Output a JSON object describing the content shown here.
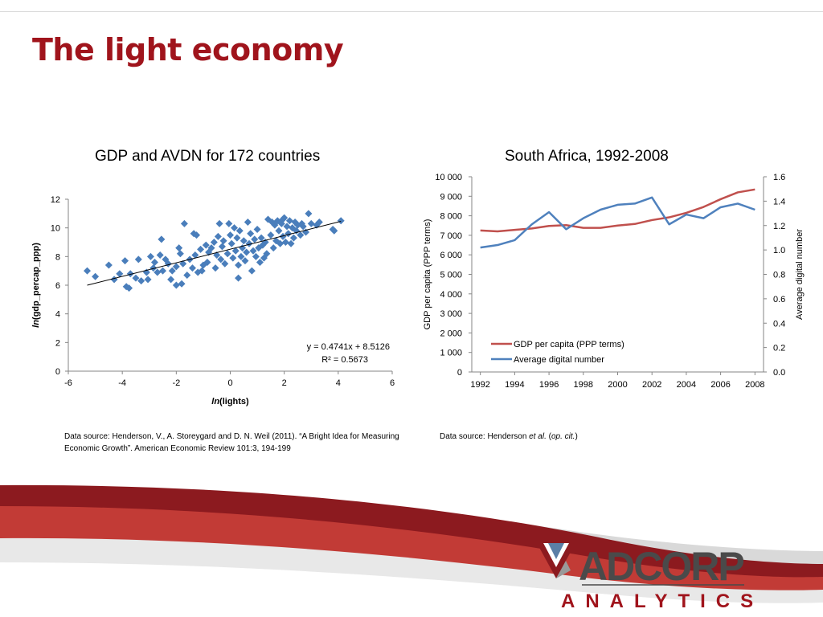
{
  "slide": {
    "title": "The light economy",
    "accent_color": "#a0141c"
  },
  "chart_data": [
    {
      "type": "scatter",
      "title": "GDP and AVDN for 172 countries",
      "xlabel_prefix": "ln",
      "xlabel_suffix": "(lights)",
      "ylabel_prefix": "ln",
      "ylabel_suffix": "(gdp_percap_ppp)",
      "xlim": [
        -6,
        6
      ],
      "ylim": [
        0,
        12
      ],
      "xticks": [
        "-6",
        "-4",
        "-2",
        "0",
        "2",
        "4",
        "6"
      ],
      "yticks": [
        "0",
        "2",
        "4",
        "6",
        "8",
        "10",
        "12"
      ],
      "grid": false,
      "marker": "diamond",
      "marker_color": "#4a7ebb",
      "trendline": {
        "slope": 0.4741,
        "intercept": 8.5126,
        "x_range": [
          -5.3,
          4.1
        ],
        "color": "#000000"
      },
      "equation": "y = 0.4741x + 8.5126",
      "r_squared": "R² = 0.5673",
      "points": [
        [
          -5.3,
          7.0
        ],
        [
          -5.0,
          6.6
        ],
        [
          -4.5,
          7.4
        ],
        [
          -4.3,
          6.4
        ],
        [
          -4.1,
          6.8
        ],
        [
          -3.9,
          7.7
        ],
        [
          -3.85,
          5.9
        ],
        [
          -3.75,
          5.8
        ],
        [
          -3.7,
          6.8
        ],
        [
          -3.5,
          6.5
        ],
        [
          -3.4,
          7.8
        ],
        [
          -3.3,
          6.3
        ],
        [
          -3.1,
          6.9
        ],
        [
          -3.05,
          6.4
        ],
        [
          -2.95,
          8.0
        ],
        [
          -2.85,
          7.2
        ],
        [
          -2.8,
          7.6
        ],
        [
          -2.7,
          6.9
        ],
        [
          -2.6,
          8.1
        ],
        [
          -2.55,
          9.2
        ],
        [
          -2.5,
          7.0
        ],
        [
          -2.4,
          7.8
        ],
        [
          -2.3,
          7.5
        ],
        [
          -2.2,
          6.4
        ],
        [
          -2.15,
          7.0
        ],
        [
          -2.0,
          7.3
        ],
        [
          -2.0,
          6.0
        ],
        [
          -1.9,
          8.6
        ],
        [
          -1.85,
          8.2
        ],
        [
          -1.8,
          6.1
        ],
        [
          -1.75,
          7.5
        ],
        [
          -1.7,
          10.3
        ],
        [
          -1.6,
          6.7
        ],
        [
          -1.5,
          7.8
        ],
        [
          -1.4,
          7.2
        ],
        [
          -1.35,
          9.6
        ],
        [
          -1.3,
          8.1
        ],
        [
          -1.25,
          9.5
        ],
        [
          -1.2,
          6.9
        ],
        [
          -1.1,
          8.5
        ],
        [
          -1.05,
          7.0
        ],
        [
          -1.0,
          7.4
        ],
        [
          -0.9,
          8.8
        ],
        [
          -0.85,
          7.6
        ],
        [
          -0.8,
          8.3
        ],
        [
          -0.7,
          8.6
        ],
        [
          -0.6,
          9.0
        ],
        [
          -0.55,
          7.2
        ],
        [
          -0.5,
          8.1
        ],
        [
          -0.45,
          9.4
        ],
        [
          -0.4,
          10.3
        ],
        [
          -0.35,
          7.8
        ],
        [
          -0.3,
          8.7
        ],
        [
          -0.25,
          9.1
        ],
        [
          -0.2,
          7.5
        ],
        [
          -0.1,
          8.2
        ],
        [
          -0.05,
          10.3
        ],
        [
          0.0,
          9.5
        ],
        [
          0.05,
          8.9
        ],
        [
          0.1,
          7.9
        ],
        [
          0.15,
          10.0
        ],
        [
          0.2,
          8.4
        ],
        [
          0.25,
          9.3
        ],
        [
          0.3,
          7.4
        ],
        [
          0.3,
          6.5
        ],
        [
          0.35,
          9.8
        ],
        [
          0.4,
          8.0
        ],
        [
          0.45,
          8.6
        ],
        [
          0.5,
          9.1
        ],
        [
          0.55,
          7.7
        ],
        [
          0.6,
          8.3
        ],
        [
          0.65,
          10.4
        ],
        [
          0.7,
          8.9
        ],
        [
          0.75,
          9.6
        ],
        [
          0.8,
          7.0
        ],
        [
          0.85,
          8.4
        ],
        [
          0.9,
          9.2
        ],
        [
          0.95,
          8.0
        ],
        [
          1.0,
          9.9
        ],
        [
          1.05,
          8.6
        ],
        [
          1.1,
          7.6
        ],
        [
          1.15,
          9.3
        ],
        [
          1.2,
          8.8
        ],
        [
          1.25,
          7.9
        ],
        [
          1.3,
          9.0
        ],
        [
          1.35,
          8.2
        ],
        [
          1.4,
          10.6
        ],
        [
          1.5,
          9.5
        ],
        [
          1.6,
          8.6
        ],
        [
          1.65,
          10.2
        ],
        [
          1.7,
          9.1
        ],
        [
          1.75,
          10.5
        ],
        [
          1.8,
          9.8
        ],
        [
          1.85,
          8.9
        ],
        [
          1.9,
          10.3
        ],
        [
          1.95,
          9.4
        ],
        [
          2.0,
          10.7
        ],
        [
          2.05,
          9.0
        ],
        [
          2.1,
          10.1
        ],
        [
          2.15,
          9.6
        ],
        [
          2.2,
          10.5
        ],
        [
          2.25,
          8.9
        ],
        [
          2.3,
          10.0
        ],
        [
          2.35,
          9.3
        ],
        [
          2.4,
          10.4
        ],
        [
          2.45,
          9.8
        ],
        [
          2.5,
          10.2
        ],
        [
          2.6,
          9.5
        ],
        [
          2.7,
          10.1
        ],
        [
          2.8,
          9.7
        ],
        [
          2.9,
          11.0
        ],
        [
          3.0,
          10.3
        ],
        [
          3.2,
          10.2
        ],
        [
          3.3,
          10.4
        ],
        [
          3.8,
          9.9
        ],
        [
          3.85,
          9.8
        ],
        [
          4.1,
          10.5
        ],
        [
          1.55,
          10.4
        ],
        [
          1.95,
          10.6
        ],
        [
          2.65,
          10.3
        ]
      ]
    },
    {
      "type": "line",
      "title": "South Africa, 1992-2008",
      "ylabel": "GDP per capita (PPP terms)",
      "y2label": "Average digital number",
      "xlim": [
        1991.5,
        2008.5
      ],
      "ylim": [
        0,
        10000
      ],
      "y2lim": [
        0,
        1.6
      ],
      "xticks": [
        "1992",
        "1994",
        "1996",
        "1998",
        "2000",
        "2002",
        "2004",
        "2006",
        "2008"
      ],
      "yticks": [
        "0",
        "1 000",
        "2 000",
        "3 000",
        "4 000",
        "5 000",
        "6 000",
        "7 000",
        "8 000",
        "9 000",
        "10 000"
      ],
      "y2ticks": [
        "0.0",
        "0.2",
        "0.4",
        "0.6",
        "0.8",
        "1.0",
        "1.2",
        "1.4",
        "1.6"
      ],
      "grid": false,
      "legend_position": "bottom-left",
      "x": [
        1992,
        1993,
        1994,
        1995,
        1996,
        1997,
        1998,
        1999,
        2000,
        2001,
        2002,
        2003,
        2004,
        2005,
        2006,
        2007,
        2008
      ],
      "series": [
        {
          "name": "GDP per capita (PPP terms)",
          "axis": "left",
          "color": "#c0504d",
          "values": [
            7250,
            7200,
            7280,
            7350,
            7480,
            7520,
            7380,
            7380,
            7500,
            7580,
            7780,
            7920,
            8150,
            8450,
            8850,
            9200,
            9350
          ]
        },
        {
          "name": "Average digital number",
          "axis": "right",
          "color": "#4f81bd",
          "values": [
            1.02,
            1.04,
            1.08,
            1.21,
            1.31,
            1.17,
            1.26,
            1.33,
            1.37,
            1.38,
            1.43,
            1.21,
            1.29,
            1.26,
            1.35,
            1.38,
            1.33
          ]
        }
      ]
    }
  ],
  "sources": {
    "left": "Data source: Henderson, V., A. Storeygard and D. N. Weil (2011). “A Bright Idea for Measuring Economic Growth”. American Economic Review 101:3, 194-199",
    "right_prefix": "Data source: Henderson ",
    "right_etal": "et al.",
    "right_mid": " (",
    "right_opcit": "op. cit.",
    "right_end": ")"
  },
  "logo": {
    "wordmark": "ADCORP",
    "subtitle": "ANALYTICS"
  }
}
